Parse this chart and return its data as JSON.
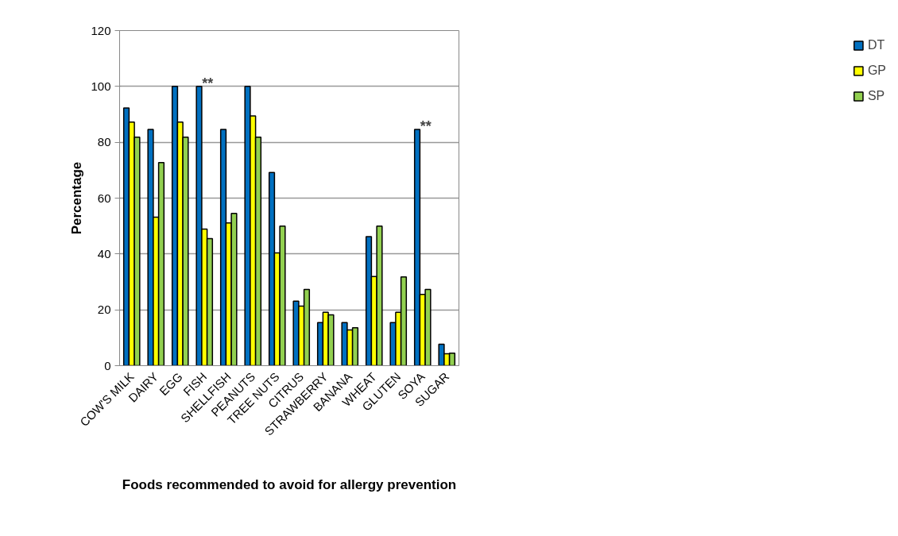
{
  "chart_data": {
    "type": "bar",
    "xlabel": "Foods recommended to avoid for allergy prevention",
    "ylabel": "Percentage",
    "categories": [
      "COW'S MILK",
      "DAIRY",
      "EGG",
      "FISH",
      "SHELLFISH",
      "PEANUTS",
      "TREE NUTS",
      "CITRUS",
      "STRAWBERRY",
      "BANANA",
      "WHEAT",
      "GLUTEN",
      "SOYA",
      "SUGAR"
    ],
    "series": [
      {
        "name": "DT",
        "color": "#0070c0",
        "values": [
          92.3,
          84.6,
          100,
          100,
          84.6,
          100,
          69.2,
          23.1,
          15.4,
          15.4,
          46.2,
          15.4,
          84.6,
          7.7
        ]
      },
      {
        "name": "GP",
        "color": "#ffff00",
        "values": [
          87.2,
          53.2,
          87.2,
          48.9,
          51.1,
          89.4,
          40.4,
          21.3,
          19.1,
          12.8,
          31.9,
          19.1,
          25.5,
          4.3
        ]
      },
      {
        "name": "SP",
        "color": "#92d050",
        "values": [
          81.8,
          72.7,
          81.8,
          45.5,
          54.5,
          81.8,
          50,
          27.3,
          18.2,
          13.6,
          50,
          31.8,
          27.3,
          4.5
        ]
      }
    ],
    "ylim": [
      0,
      120
    ],
    "yticks": [
      0,
      20,
      40,
      60,
      80,
      100,
      120
    ],
    "grid": "y",
    "legend": "right",
    "annotations": [
      {
        "text": "**",
        "x": "FISH",
        "y": 100
      },
      {
        "text": "**",
        "x": "SOYA",
        "y": 84.6
      }
    ]
  }
}
